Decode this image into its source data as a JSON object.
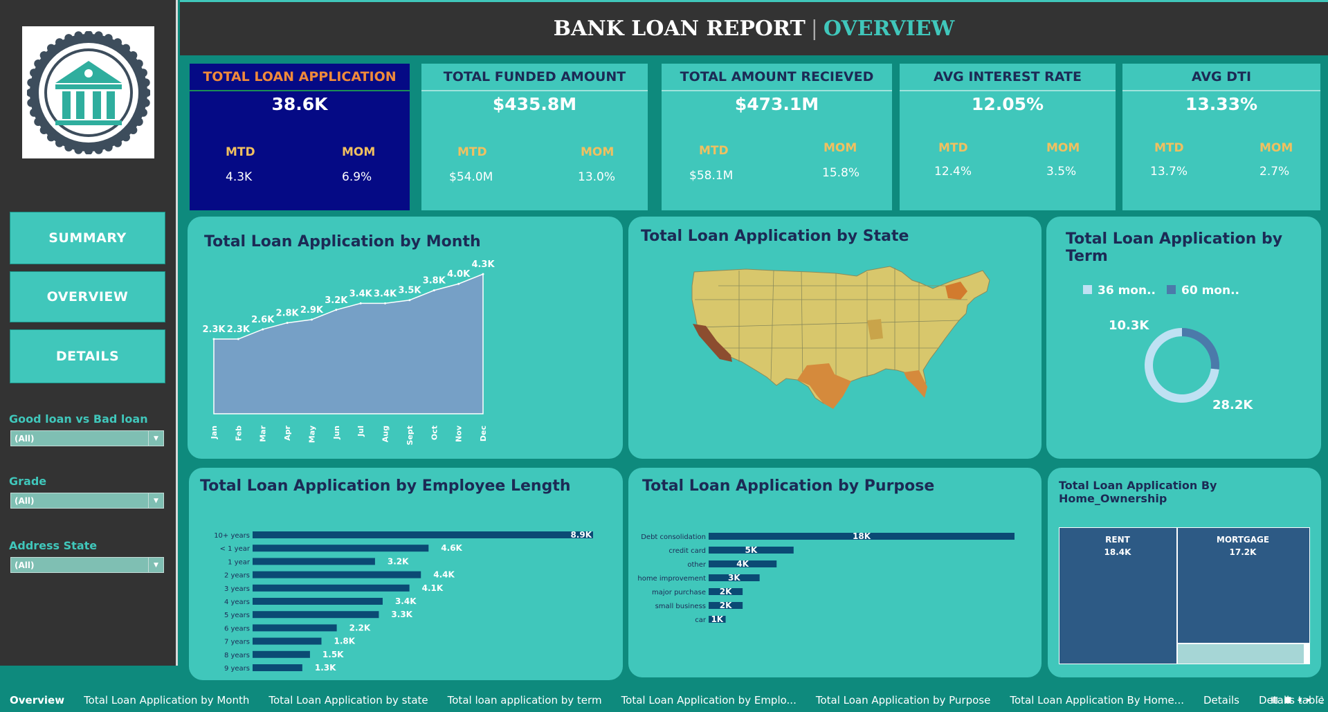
{
  "header": {
    "title": "BANK LOAN REPORT",
    "separator": "|",
    "subtitle": "OVERVIEW"
  },
  "sidebar": {
    "nav": [
      {
        "label": "SUMMARY"
      },
      {
        "label": "OVERVIEW"
      },
      {
        "label": "DETAILS"
      }
    ],
    "filters": [
      {
        "label": "Good loan vs Bad loan",
        "value": "(All)"
      },
      {
        "label": "Grade",
        "value": "(All)"
      },
      {
        "label": "Address State",
        "value": "(All)"
      }
    ]
  },
  "kpis": [
    {
      "title": "TOTAL LOAN APPLICATION",
      "value": "38.6K",
      "mtd_label": "MTD",
      "mtd": "4.3K",
      "mom_label": "MOM",
      "mom": "6.9%"
    },
    {
      "title": "TOTAL FUNDED AMOUNT",
      "value": "$435.8M",
      "mtd_label": "MTD",
      "mtd": "$54.0M",
      "mom_label": "MOM",
      "mom": "13.0%"
    },
    {
      "title": "TOTAL  AMOUNT RECIEVED",
      "value": "$473.1M",
      "mtd_label": "MTD",
      "mtd": "$58.1M",
      "mom_label": "MOM",
      "mom": "15.8%"
    },
    {
      "title": "AVG INTEREST RATE",
      "value": "12.05%",
      "mtd_label": "MTD",
      "mtd": "12.4%",
      "mom_label": "MOM",
      "mom": "3.5%"
    },
    {
      "title": "AVG DTI",
      "value": "13.33%",
      "mtd_label": "MTD",
      "mtd": "13.7%",
      "mom_label": "MOM",
      "mom": "2.7%"
    }
  ],
  "panels": {
    "month": {
      "title": "Total Loan Application by Month"
    },
    "state": {
      "title": "Total Loan Application by State"
    },
    "term": {
      "title": "Total Loan Application by Term"
    },
    "emp": {
      "title": "Total Loan Application by Employee Length"
    },
    "purpose": {
      "title": "Total Loan Application by Purpose"
    },
    "home": {
      "title": "Total Loan Application By Home_Ownership"
    }
  },
  "chart_data": [
    {
      "type": "area",
      "title": "Total Loan Application by Month",
      "categories": [
        "Jan",
        "Feb",
        "Mar",
        "Apr",
        "May",
        "Jun",
        "Jul",
        "Aug",
        "Sept",
        "Oct",
        "Nov",
        "Dec"
      ],
      "values": [
        2.3,
        2.3,
        2.6,
        2.8,
        2.9,
        3.2,
        3.4,
        3.4,
        3.5,
        3.8,
        4.0,
        4.3
      ],
      "labels": [
        "2.3K",
        "2.3K",
        "2.6K",
        "2.8K",
        "2.9K",
        "3.2K",
        "3.4K",
        "3.4K",
        "3.5K",
        "3.8K",
        "4.0K",
        "4.3K"
      ],
      "color": "#76a0c6"
    },
    {
      "type": "pie",
      "title": "Total Loan Application by Term",
      "legend": [
        "36 mon..",
        "60 mon.."
      ],
      "values": [
        28.2,
        10.3
      ],
      "labels": [
        "28.2K",
        "10.3K"
      ],
      "colors": [
        "#bfe1f3",
        "#4b7aaa"
      ]
    },
    {
      "type": "bar",
      "title": "Total Loan Application by Employee Length",
      "categories": [
        "10+ years",
        "< 1 year",
        "1 year",
        "2 years",
        "3 years",
        "4 years",
        "5 years",
        "6 years",
        "7 years",
        "8 years",
        "9 years"
      ],
      "values": [
        8.9,
        4.6,
        3.2,
        4.4,
        4.1,
        3.4,
        3.3,
        2.2,
        1.8,
        1.5,
        1.3
      ],
      "labels": [
        "8.9K",
        "4.6K",
        "3.2K",
        "4.4K",
        "4.1K",
        "3.4K",
        "3.3K",
        "2.2K",
        "1.8K",
        "1.5K",
        "1.3K"
      ],
      "color": "#0b4a74"
    },
    {
      "type": "bar",
      "title": "Total Loan Application by Purpose",
      "categories": [
        "Debt consolidation",
        "credit card",
        "other",
        "home improvement",
        "major purchase",
        "small business",
        "car"
      ],
      "values": [
        18,
        5,
        4,
        3,
        2,
        2,
        1
      ],
      "labels": [
        "18K",
        "5K",
        "4K",
        "3K",
        "2K",
        "2K",
        "1K"
      ],
      "color": "#0b4a74"
    },
    {
      "type": "heatmap",
      "title": "Total Loan Application By Home_Ownership",
      "categories": [
        "RENT",
        "MORTGAGE"
      ],
      "values": [
        18.4,
        17.2
      ],
      "labels": [
        "18.4K",
        "17.2K"
      ],
      "color": "#2d5a85"
    }
  ],
  "tabs": [
    "Overview",
    "Total Loan Application by Month",
    "Total Loan Application by state",
    "Total loan application by term",
    "Total Loan Application by Emplo...",
    "Total Loan Application by Purpose",
    "Total Loan Application By Home...",
    "Details",
    "Details table"
  ]
}
